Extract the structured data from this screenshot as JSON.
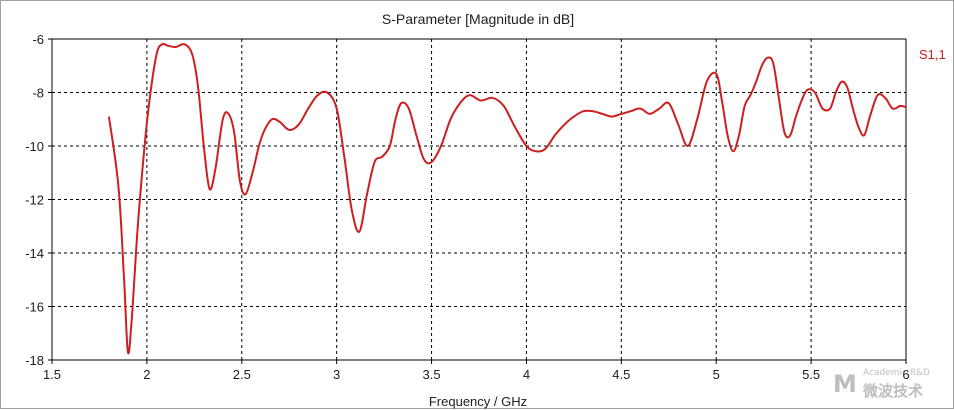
{
  "chart_data": {
    "type": "line",
    "title": "S-Parameter [Magnitude in dB]",
    "xlabel": "Frequency / GHz",
    "ylabel": "",
    "xlim": [
      1.5,
      6
    ],
    "ylim": [
      -18,
      -6
    ],
    "x_ticks": [
      "1.5",
      "2",
      "2.5",
      "3",
      "3.5",
      "4",
      "4.5",
      "5",
      "5.5",
      "6"
    ],
    "y_ticks": [
      "-6",
      "-8",
      "-10",
      "-12",
      "-14",
      "-16",
      "-18"
    ],
    "grid": true,
    "legend_placement": "right",
    "series": [
      {
        "name": "S1,1",
        "color": "#cc1f1f",
        "x": [
          1.8,
          1.85,
          1.88,
          1.9,
          1.92,
          1.95,
          1.98,
          2.01,
          2.05,
          2.08,
          2.11,
          2.15,
          2.2,
          2.24,
          2.27,
          2.3,
          2.33,
          2.36,
          2.4,
          2.43,
          2.46,
          2.49,
          2.52,
          2.56,
          2.59,
          2.62,
          2.66,
          2.7,
          2.75,
          2.8,
          2.85,
          2.9,
          2.95,
          3.0,
          3.04,
          3.08,
          3.12,
          3.16,
          3.2,
          3.24,
          3.28,
          3.31,
          3.34,
          3.38,
          3.42,
          3.46,
          3.5,
          3.55,
          3.6,
          3.65,
          3.7,
          3.76,
          3.82,
          3.88,
          3.94,
          4.0,
          4.05,
          4.1,
          4.15,
          4.2,
          4.25,
          4.3,
          4.35,
          4.4,
          4.45,
          4.5,
          4.55,
          4.6,
          4.65,
          4.7,
          4.75,
          4.8,
          4.85,
          4.9,
          4.95,
          5.0,
          5.03,
          5.06,
          5.09,
          5.12,
          5.15,
          5.18,
          5.21,
          5.24,
          5.27,
          5.3,
          5.33,
          5.36,
          5.39,
          5.42,
          5.45,
          5.48,
          5.52,
          5.56,
          5.6,
          5.63,
          5.66,
          5.69,
          5.72,
          5.75,
          5.78,
          5.81,
          5.85,
          5.89,
          5.93,
          5.97,
          6.0
        ],
        "y": [
          -8.9,
          -11.5,
          -15.0,
          -17.7,
          -16.5,
          -13.2,
          -10.6,
          -8.5,
          -6.6,
          -6.2,
          -6.25,
          -6.3,
          -6.2,
          -6.6,
          -7.8,
          -10.0,
          -11.6,
          -10.9,
          -9.0,
          -8.8,
          -9.5,
          -11.3,
          -11.8,
          -10.9,
          -10.0,
          -9.4,
          -9.0,
          -9.1,
          -9.4,
          -9.2,
          -8.6,
          -8.1,
          -8.0,
          -8.6,
          -10.4,
          -12.4,
          -13.2,
          -11.8,
          -10.6,
          -10.4,
          -10.0,
          -9.0,
          -8.4,
          -8.6,
          -9.6,
          -10.5,
          -10.6,
          -10.0,
          -9.0,
          -8.4,
          -8.1,
          -8.3,
          -8.2,
          -8.5,
          -9.3,
          -10.0,
          -10.2,
          -10.1,
          -9.6,
          -9.2,
          -8.9,
          -8.7,
          -8.7,
          -8.8,
          -8.9,
          -8.8,
          -8.7,
          -8.6,
          -8.8,
          -8.6,
          -8.4,
          -9.2,
          -10.0,
          -9.0,
          -7.6,
          -7.3,
          -8.3,
          -9.6,
          -10.2,
          -9.6,
          -8.5,
          -8.1,
          -7.6,
          -7.0,
          -6.7,
          -6.9,
          -8.2,
          -9.5,
          -9.6,
          -8.9,
          -8.3,
          -7.9,
          -8.0,
          -8.6,
          -8.6,
          -8.0,
          -7.6,
          -7.8,
          -8.6,
          -9.3,
          -9.6,
          -8.9,
          -8.1,
          -8.2,
          -8.6,
          -8.5,
          -8.55
        ]
      }
    ]
  },
  "watermark": {
    "mark": "M",
    "small_text": "Academic R&D",
    "big_text": "微波技术"
  }
}
